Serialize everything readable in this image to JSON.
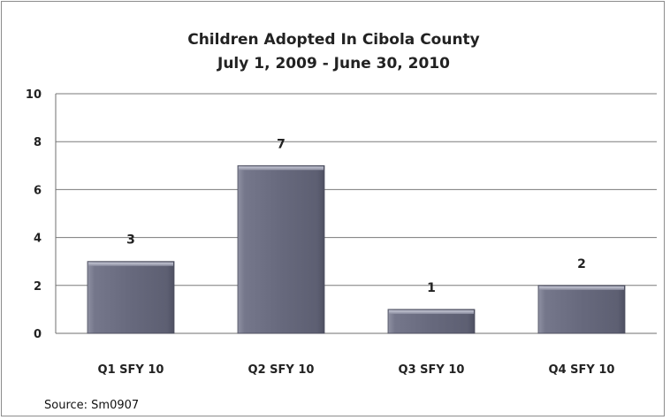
{
  "chart_data": {
    "type": "bar",
    "title": "Children Adopted In Cibola County",
    "subtitle": "July 1, 2009 - June 30, 2010",
    "categories": [
      "Q1 SFY 10",
      "Q2 SFY 10",
      "Q3 SFY 10",
      "Q4 SFY 10"
    ],
    "values": [
      3,
      7,
      1,
      2
    ],
    "data_labels": [
      "3",
      "7",
      "1",
      "2"
    ],
    "ylim": [
      0,
      10
    ],
    "yticks": [
      0,
      2,
      4,
      6,
      8,
      10
    ],
    "xlabel": "",
    "ylabel": "",
    "grid": true,
    "legend": false,
    "bar_color": "#6e7084",
    "source": "Source: Sm0907"
  }
}
